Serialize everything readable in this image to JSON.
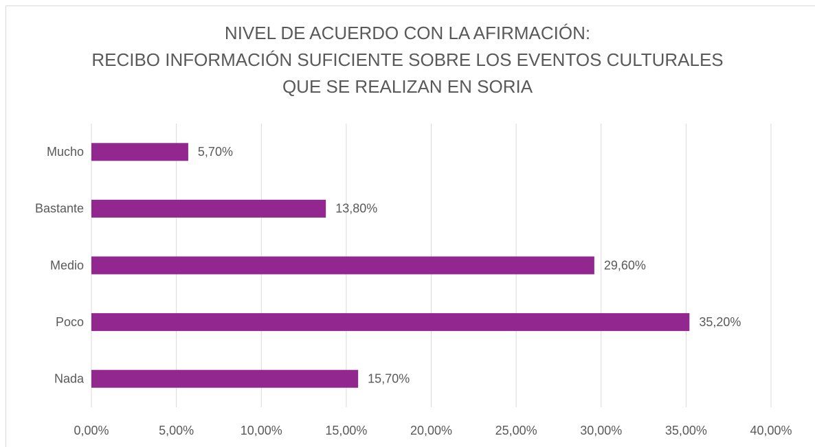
{
  "chart_data": {
    "type": "bar",
    "orientation": "horizontal",
    "title": [
      "NIVEL DE ACUERDO CON LA AFIRMACIÓN:",
      "RECIBO INFORMACIÓN SUFICIENTE SOBRE LOS EVENTOS CULTURALES",
      "QUE SE REALIZAN EN SORIA"
    ],
    "categories": [
      "Mucho",
      "Bastante",
      "Medio",
      "Poco",
      "Nada"
    ],
    "values": [
      5.7,
      13.8,
      29.6,
      35.2,
      15.7
    ],
    "value_labels": [
      "5,70%",
      "13,80%",
      "29,60%",
      "35,20%",
      "15,70%"
    ],
    "color": "#92278f",
    "xlim": [
      0,
      40
    ],
    "xticks": [
      {
        "value": 0,
        "label": "0,00%"
      },
      {
        "value": 5,
        "label": "5,00%"
      },
      {
        "value": 10,
        "label": "10,00%"
      },
      {
        "value": 15,
        "label": "15,00%"
      },
      {
        "value": 20,
        "label": "20,00%"
      },
      {
        "value": 25,
        "label": "25,00%"
      },
      {
        "value": 30,
        "label": "30,00%"
      },
      {
        "value": 35,
        "label": "35,00%"
      },
      {
        "value": 40,
        "label": "40,00%"
      }
    ],
    "grid": true
  }
}
